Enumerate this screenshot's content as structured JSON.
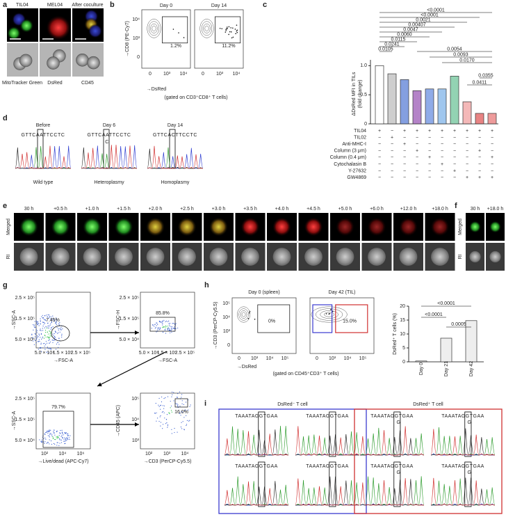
{
  "a": {
    "label": "a",
    "titles": [
      "TIL04",
      "MEL04",
      "After coculture"
    ],
    "captions": [
      "MitoTracker Green",
      "DsRed",
      "CD45"
    ]
  },
  "b": {
    "label": "b",
    "plots": [
      {
        "title": "Day 0",
        "gate": "1.2%"
      },
      {
        "title": "Day 14",
        "gate": "11.2%"
      }
    ],
    "y_label": "→CD8 (PE-Cy7)",
    "y_ticks": [
      "10⁴",
      "10³",
      "0"
    ],
    "x_ticks": [
      "0",
      "10³",
      "10⁴"
    ],
    "x_label": "→DsRed",
    "note": "(gated on CD3⁺CD8⁺ T cells)"
  },
  "c": {
    "label": "c",
    "type": "bar",
    "y_label": "ΔDsRed MFI in TILs",
    "y_label2": "(fold change)",
    "ylim": [
      0,
      1.1
    ],
    "yticks": [
      0,
      0.5,
      {
        "value": 1,
        "label": "1.0"
      }
    ],
    "values": [
      1.0,
      0.86,
      0.76,
      0.57,
      0.6,
      0.6,
      0.82,
      0.38,
      0.18,
      0.18
    ],
    "colors": [
      "#ffffff",
      "#bdbdbd",
      "#5b7fd6",
      "#9b59b6",
      "#6a8fe0",
      "#7fb3e8",
      "#6fc49a",
      "#f0a0a0",
      "#e05a5a",
      "#e87a7a"
    ],
    "rows": [
      {
        "name": "TIL04",
        "signs": [
          "+",
          "−",
          "+",
          "+",
          "+",
          "+",
          "+",
          "+",
          "+",
          "+"
        ]
      },
      {
        "name": "TIL02",
        "signs": [
          "−",
          "+",
          "−",
          "−",
          "−",
          "−",
          "−",
          "−",
          "−",
          "−"
        ]
      },
      {
        "name": "Anti-MHC-I",
        "signs": [
          "−",
          "−",
          "+",
          "−",
          "−",
          "−",
          "−",
          "−",
          "−",
          "−"
        ]
      },
      {
        "name": "Column (3 μm)",
        "signs": [
          "−",
          "−",
          "−",
          "+",
          "−",
          "−",
          "−",
          "−",
          "+",
          "−"
        ]
      },
      {
        "name": "Column (0.4 μm)",
        "signs": [
          "−",
          "−",
          "−",
          "−",
          "+",
          "−",
          "−",
          "−",
          "−",
          "+"
        ]
      },
      {
        "name": "Cytochalasin B",
        "signs": [
          "−",
          "−",
          "−",
          "−",
          "−",
          "+",
          "−",
          "−",
          "−",
          "−"
        ]
      },
      {
        "name": "Y-27632",
        "signs": [
          "−",
          "−",
          "−",
          "−",
          "−",
          "−",
          "+",
          "−",
          "−",
          "−"
        ]
      },
      {
        "name": "GW4869",
        "signs": [
          "−",
          "−",
          "−",
          "−",
          "−",
          "−",
          "−",
          "+",
          "+",
          "+"
        ]
      }
    ],
    "pvalues": [
      "<0.0001",
      "<0.0001",
      "0.0021",
      "0.00407",
      "0.0047",
      "0.0060",
      "0.0115",
      "0.0241",
      "0.0105",
      "0.0054",
      "0.0093",
      "0.0170",
      "0.0355",
      "0.0411"
    ]
  },
  "d": {
    "label": "d",
    "samples": [
      {
        "title": "Before",
        "sequence": "GTTCAATTCCTC",
        "caption": "Wild type"
      },
      {
        "title": "Day 6",
        "sequence": "GTTCAATTCCTC",
        "alt": "C",
        "caption": "Heteroplasmy"
      },
      {
        "title": "Day 14",
        "sequence": "GTTCACTTCCTC",
        "caption": "Homoplasmy"
      }
    ]
  },
  "e": {
    "label": "e",
    "times": [
      "30 h",
      "+0.5 h",
      "+1.0 h",
      "+1.5 h",
      "+2.0 h",
      "+2.5 h",
      "+3.0 h",
      "+3.5 h",
      "+4.0 h",
      "+4.5 h",
      "+5.0 h",
      "+6.0 h",
      "+12.0 h",
      "+18.0 h"
    ],
    "rows": [
      "Merged",
      "RI"
    ]
  },
  "f": {
    "label": "f",
    "times": [
      "30 h",
      "+18.0 h"
    ],
    "rows": [
      "Merged",
      "RI"
    ]
  },
  "g": {
    "label": "g",
    "plots": [
      {
        "gate": "7.45%",
        "x_label": "→FSC-A",
        "y_label": "→SSC-A",
        "x_ticks": [
          "5.0 × 10⁴",
          "1.5 × 10⁵",
          "2.5 × 10⁵"
        ],
        "y_ticks": [
          "2.5 × 10⁵",
          "1.5 × 10⁵",
          "5.0 × 10⁴"
        ]
      },
      {
        "gate": "85.8%",
        "x_label": "→FSC-A",
        "y_label": "→FSC-H",
        "x_ticks": [
          "5.0 × 10⁴",
          "1.5 × 10⁵",
          "2.5 × 10⁵"
        ],
        "y_ticks": [
          "2.5 × 10⁵",
          "1.5 × 10⁵",
          "5.0 × 10⁴"
        ]
      },
      {
        "gate": "79.7%",
        "x_label": "→Live/dead (APC-Cy7)",
        "y_label": "→SSC-A",
        "x_ticks": [
          "10²",
          "10⁴",
          "10⁶"
        ],
        "y_ticks": [
          "2.5 × 10⁵",
          "1.5 × 10⁵",
          "5.0 × 10⁴"
        ]
      },
      {
        "gate": "16.0%",
        "x_label": "→CD3 (PerCP-Cy5.5)",
        "y_label": "→CD45 (APC)",
        "x_ticks": [
          "10²",
          "10³",
          "10⁴"
        ],
        "y_ticks": [
          "10⁵",
          "10⁴",
          "10³"
        ]
      }
    ]
  },
  "h": {
    "label": "h",
    "plots": [
      {
        "title": "Day 0 (spleen)",
        "gate": "0%"
      },
      {
        "title": "Day 42 (TIL)",
        "gate": "15.0%"
      }
    ],
    "y_label": "→CD3 (PerCP-Cy5.5)",
    "y_ticks": [
      "10⁵",
      "10⁴",
      "10³",
      "0"
    ],
    "x_ticks": [
      "0",
      "10³",
      "10⁴",
      "10⁵"
    ],
    "x_label": "→DsRed",
    "note": "(gated on CD45⁺CD3⁺ T cells)",
    "bar": {
      "type": "bar",
      "y_label": "DsRed⁺ T cells (%)",
      "categories": [
        "Day 0",
        "Day 21",
        "Day 42"
      ],
      "values": [
        0.3,
        8.5,
        14.8
      ],
      "ylim": [
        0,
        20
      ],
      "yticks": [
        0,
        5,
        10,
        15,
        20
      ],
      "pvalues": [
        "<0.0001",
        "<0.0001",
        "0.0005"
      ]
    }
  },
  "i": {
    "label": "i",
    "groups": [
      {
        "title": "DsRed⁻ T cell",
        "sequences": [
          "TAAATAGGTGAA",
          "TAAATAGGTGAA",
          "TAAATAGGTGAA",
          "TAAATAGGTGAA"
        ]
      },
      {
        "title": "DsRed⁺ T cell",
        "sequences": [
          "TAAATAGGTGAA",
          "TAAATAGGTGAA",
          "TAAATAGGTGAA",
          "TAAATAGGTGAA"
        ],
        "alt": "G"
      }
    ]
  }
}
